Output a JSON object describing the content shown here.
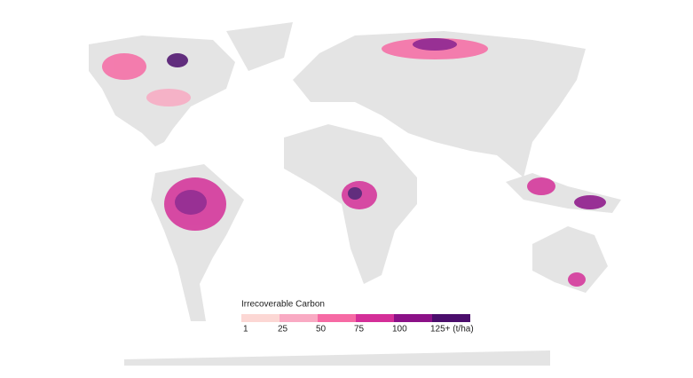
{
  "legend": {
    "title": "Irrecoverable Carbon",
    "colors": [
      "#fcd7d4",
      "#f9aac3",
      "#f66aa4",
      "#d42f98",
      "#8b1187",
      "#4b0e6c"
    ],
    "labels": [
      "1",
      "25",
      "50",
      "75",
      "100",
      "125+ (t/ha)"
    ]
  }
}
